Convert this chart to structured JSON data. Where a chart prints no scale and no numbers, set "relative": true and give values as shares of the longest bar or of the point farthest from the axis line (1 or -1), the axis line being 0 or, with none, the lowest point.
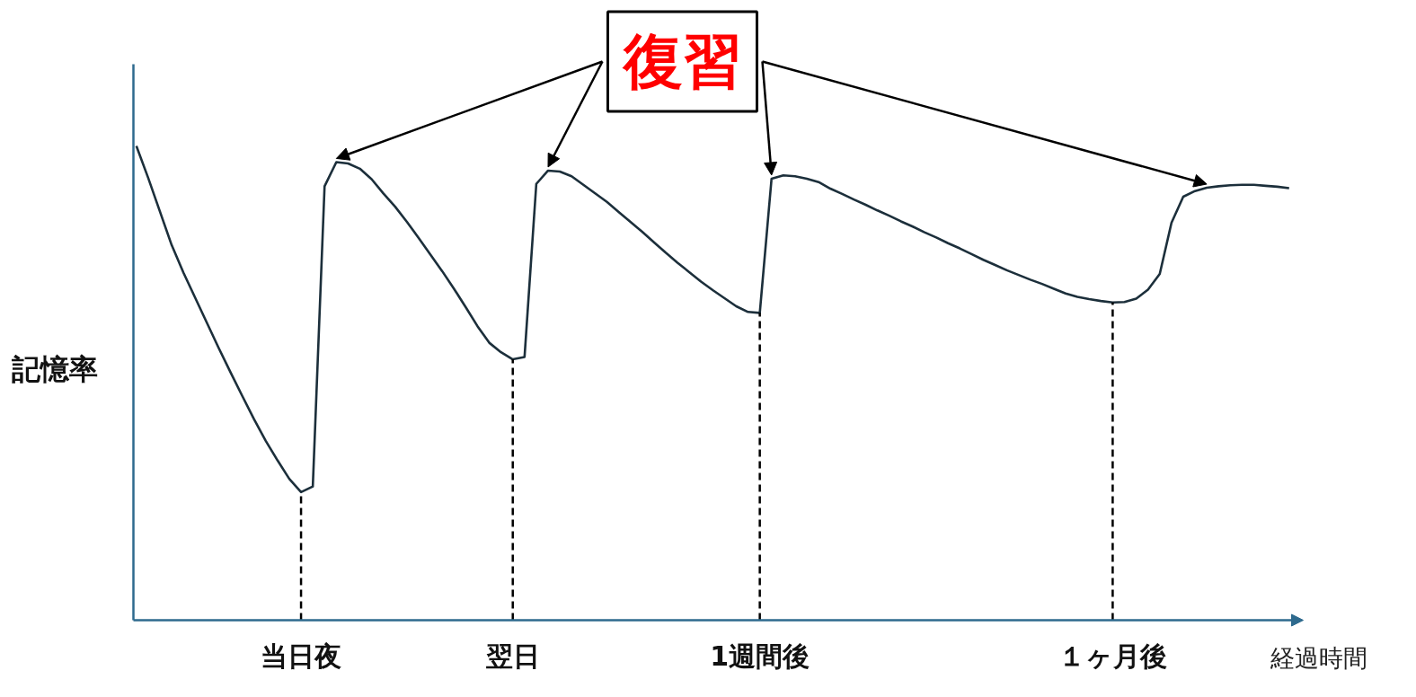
{
  "chart_data": {
    "type": "line",
    "relative": true,
    "ylabel": "記憶率",
    "xlabel": "経過時間",
    "annotations": [
      "復習"
    ],
    "categories": [
      null,
      null,
      null,
      null,
      null,
      null,
      null,
      null,
      null,
      null,
      null,
      null,
      null,
      null,
      "当日夜",
      null,
      null,
      null,
      null,
      null,
      null,
      null,
      null,
      null,
      null,
      null,
      null,
      null,
      null,
      null,
      null,
      null,
      "翌日",
      null,
      null,
      null,
      null,
      null,
      null,
      null,
      null,
      null,
      null,
      null,
      null,
      null,
      null,
      null,
      null,
      null,
      null,
      null,
      null,
      "1週間後",
      null,
      null,
      null,
      null,
      null,
      null,
      null,
      null,
      null,
      null,
      null,
      null,
      null,
      null,
      null,
      null,
      null,
      null,
      null,
      null,
      null,
      null,
      null,
      null,
      null,
      null,
      null,
      null,
      null,
      "１ヶ月後",
      null,
      null,
      null,
      null,
      null,
      null,
      null,
      null,
      null,
      null,
      null,
      null,
      null,
      null,
      null
    ],
    "series": [
      {
        "color": "#1c2f3b",
        "values": [
          1.0,
          0.933,
          0.862,
          0.791,
          0.733,
          0.68,
          0.627,
          0.574,
          0.523,
          0.473,
          0.424,
          0.378,
          0.337,
          0.298,
          0.27,
          0.282,
          0.915,
          0.966,
          0.963,
          0.952,
          0.93,
          0.9,
          0.872,
          0.84,
          0.806,
          0.771,
          0.736,
          0.699,
          0.66,
          0.62,
          0.585,
          0.565,
          0.55,
          0.555,
          0.92,
          0.948,
          0.946,
          0.936,
          0.918,
          0.9,
          0.882,
          0.861,
          0.84,
          0.819,
          0.797,
          0.775,
          0.754,
          0.734,
          0.714,
          0.696,
          0.679,
          0.662,
          0.65,
          0.648,
          0.931,
          0.938,
          0.936,
          0.931,
          0.924,
          0.91,
          0.899,
          0.887,
          0.876,
          0.864,
          0.853,
          0.841,
          0.83,
          0.818,
          0.807,
          0.795,
          0.784,
          0.772,
          0.76,
          0.749,
          0.738,
          0.728,
          0.718,
          0.709,
          0.699,
          0.689,
          0.682,
          0.677,
          0.673,
          0.67,
          0.671,
          0.678,
          0.697,
          0.73,
          0.838,
          0.893,
          0.905,
          0.912,
          0.915,
          0.917,
          0.918,
          0.918,
          0.916,
          0.914,
          0.911
        ]
      }
    ],
    "ref_lines": [
      {
        "axis": "x",
        "value": "当日夜",
        "color": "#000000",
        "line_style": "dashed"
      },
      {
        "axis": "x",
        "value": "翌日",
        "color": "#000000",
        "line_style": "dashed"
      },
      {
        "axis": "x",
        "value": "1週間後",
        "color": "#000000",
        "line_style": "dashed"
      },
      {
        "axis": "x",
        "value": "１ヶ月後",
        "color": "#000000",
        "line_style": "dashed"
      }
    ]
  }
}
